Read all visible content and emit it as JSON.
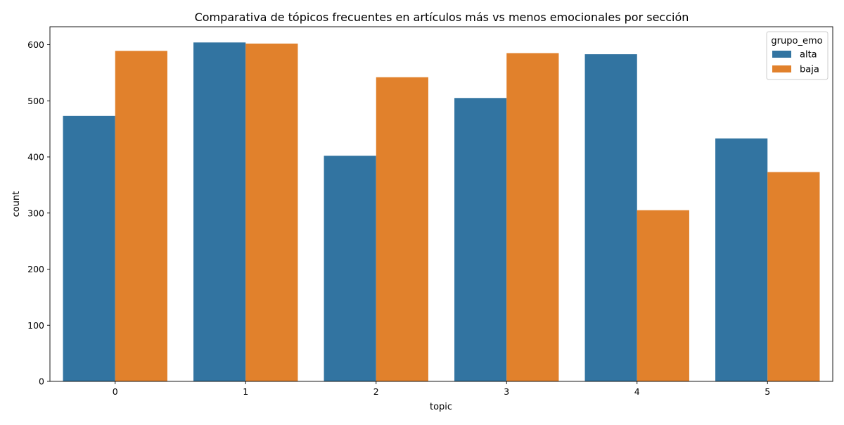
{
  "chart_data": {
    "type": "bar",
    "title": "Comparativa de tópicos frecuentes en artículos más vs menos emocionales por sección",
    "xlabel": "topic",
    "ylabel": "count",
    "categories": [
      "0",
      "1",
      "2",
      "3",
      "4",
      "5"
    ],
    "series": [
      {
        "name": "alta",
        "color": "#3274a1",
        "values": [
          473,
          604,
          402,
          505,
          583,
          433
        ]
      },
      {
        "name": "baja",
        "color": "#e1812c",
        "values": [
          589,
          602,
          542,
          585,
          305,
          373
        ]
      }
    ],
    "ylim": [
      0,
      632
    ],
    "yticks": [
      0,
      100,
      200,
      300,
      400,
      500,
      600
    ],
    "grid": false,
    "legend": {
      "title": "grupo_emo",
      "placement": "top-right"
    }
  }
}
